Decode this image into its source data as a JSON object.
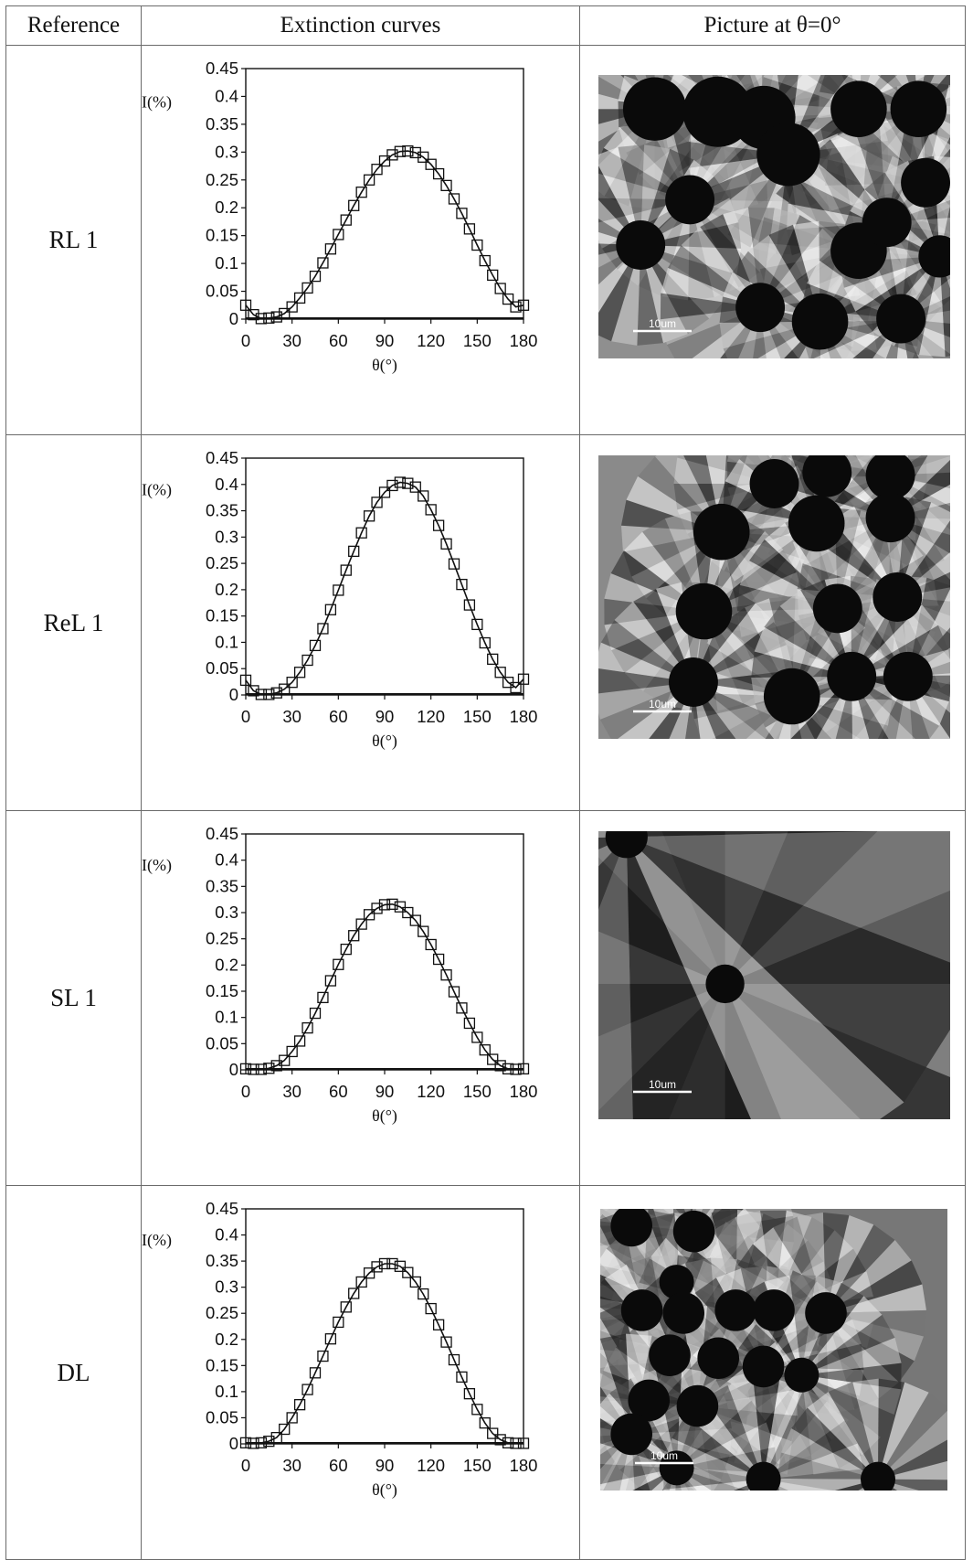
{
  "table": {
    "headers": [
      "Reference",
      "Extinction curves",
      "Picture at θ=0°"
    ]
  },
  "chart_data": [
    {
      "type": "scatter",
      "reference": "RL 1",
      "xlabel": "θ(°)",
      "ylabel": "I(%)",
      "xlim": [
        0,
        180
      ],
      "ylim": [
        0,
        0.45
      ],
      "xticks": [
        0,
        30,
        60,
        90,
        120,
        150,
        180
      ],
      "yticks": [
        "0",
        "0.05",
        "0.1",
        "0.15",
        "0.2",
        "0.25",
        "0.3",
        "0.35",
        "0.4",
        "0.45"
      ],
      "marker": "open-square",
      "fit_line": true,
      "x": [
        0,
        5,
        10,
        15,
        20,
        25,
        30,
        35,
        40,
        45,
        50,
        55,
        60,
        65,
        70,
        75,
        80,
        85,
        90,
        95,
        100,
        105,
        110,
        115,
        120,
        125,
        130,
        135,
        140,
        145,
        150,
        155,
        160,
        165,
        170,
        175,
        180
      ],
      "y": [
        0.025,
        0.008,
        0.001,
        0.002,
        0.004,
        0.01,
        0.022,
        0.038,
        0.056,
        0.077,
        0.101,
        0.126,
        0.152,
        0.178,
        0.204,
        0.228,
        0.25,
        0.269,
        0.284,
        0.295,
        0.301,
        0.302,
        0.299,
        0.291,
        0.278,
        0.261,
        0.24,
        0.216,
        0.19,
        0.162,
        0.133,
        0.105,
        0.079,
        0.055,
        0.036,
        0.022,
        0.025
      ]
    },
    {
      "type": "scatter",
      "reference": "ReL 1",
      "xlabel": "θ(°)",
      "ylabel": "I(%)",
      "xlim": [
        0,
        180
      ],
      "ylim": [
        0,
        0.45
      ],
      "xticks": [
        0,
        30,
        60,
        90,
        120,
        150,
        180
      ],
      "yticks": [
        "0",
        "0.05",
        "0.1",
        "0.15",
        "0.2",
        "0.25",
        "0.3",
        "0.35",
        "0.4",
        "0.45"
      ],
      "marker": "open-square",
      "fit_line": true,
      "x": [
        0,
        5,
        10,
        15,
        20,
        25,
        30,
        35,
        40,
        45,
        50,
        55,
        60,
        65,
        70,
        75,
        80,
        85,
        90,
        95,
        100,
        105,
        110,
        115,
        120,
        125,
        130,
        135,
        140,
        145,
        150,
        155,
        160,
        165,
        170,
        175,
        180
      ],
      "y": [
        0.028,
        0.008,
        0.001,
        0.001,
        0.004,
        0.011,
        0.024,
        0.043,
        0.066,
        0.094,
        0.126,
        0.162,
        0.199,
        0.237,
        0.273,
        0.308,
        0.34,
        0.366,
        0.385,
        0.398,
        0.404,
        0.402,
        0.395,
        0.378,
        0.352,
        0.322,
        0.287,
        0.249,
        0.21,
        0.171,
        0.134,
        0.099,
        0.068,
        0.043,
        0.024,
        0.014,
        0.03
      ]
    },
    {
      "type": "scatter",
      "reference": "SL 1",
      "xlabel": "θ(°)",
      "ylabel": "I(%)",
      "xlim": [
        0,
        180
      ],
      "ylim": [
        0,
        0.45
      ],
      "xticks": [
        0,
        30,
        60,
        90,
        120,
        150,
        180
      ],
      "yticks": [
        "0",
        "0.05",
        "0.1",
        "0.15",
        "0.2",
        "0.25",
        "0.3",
        "0.35",
        "0.4",
        "0.45"
      ],
      "marker": "open-square",
      "fit_line": true,
      "x": [
        0,
        5,
        10,
        15,
        20,
        25,
        30,
        35,
        40,
        45,
        50,
        55,
        60,
        65,
        70,
        75,
        80,
        85,
        90,
        95,
        100,
        105,
        110,
        115,
        120,
        125,
        130,
        135,
        140,
        145,
        150,
        155,
        160,
        165,
        170,
        175,
        180
      ],
      "y": [
        0.002,
        0.001,
        0.001,
        0.003,
        0.008,
        0.018,
        0.035,
        0.055,
        0.08,
        0.108,
        0.138,
        0.17,
        0.201,
        0.23,
        0.256,
        0.278,
        0.296,
        0.308,
        0.315,
        0.316,
        0.311,
        0.3,
        0.285,
        0.264,
        0.239,
        0.211,
        0.181,
        0.149,
        0.118,
        0.089,
        0.062,
        0.038,
        0.02,
        0.008,
        0.002,
        0.001,
        0.002
      ]
    },
    {
      "type": "scatter",
      "reference": "DL",
      "xlabel": "θ(°)",
      "ylabel": "I(%)",
      "xlim": [
        0,
        180
      ],
      "ylim": [
        0,
        0.45
      ],
      "xticks": [
        0,
        30,
        60,
        90,
        120,
        150,
        180
      ],
      "yticks": [
        "0",
        "0.05",
        "0.1",
        "0.15",
        "0.2",
        "0.25",
        "0.3",
        "0.35",
        "0.4",
        "0.45"
      ],
      "marker": "open-square",
      "fit_line": true,
      "x": [
        0,
        5,
        10,
        15,
        20,
        25,
        30,
        35,
        40,
        45,
        50,
        55,
        60,
        65,
        70,
        75,
        80,
        85,
        90,
        95,
        100,
        105,
        110,
        115,
        120,
        125,
        130,
        135,
        140,
        145,
        150,
        155,
        160,
        165,
        170,
        175,
        180
      ],
      "y": [
        0.002,
        0.001,
        0.002,
        0.005,
        0.012,
        0.028,
        0.05,
        0.075,
        0.104,
        0.136,
        0.168,
        0.201,
        0.233,
        0.262,
        0.288,
        0.31,
        0.327,
        0.339,
        0.345,
        0.345,
        0.34,
        0.328,
        0.31,
        0.287,
        0.259,
        0.228,
        0.195,
        0.161,
        0.128,
        0.096,
        0.066,
        0.04,
        0.02,
        0.008,
        0.002,
        0.001,
        0.001
      ]
    }
  ],
  "micrographs": [
    {
      "reference": "RL 1",
      "scale_label": "10um"
    },
    {
      "reference": "ReL 1",
      "scale_label": "10um"
    },
    {
      "reference": "SL 1",
      "scale_label": "10um"
    },
    {
      "reference": "DL",
      "scale_label": "10um"
    }
  ]
}
